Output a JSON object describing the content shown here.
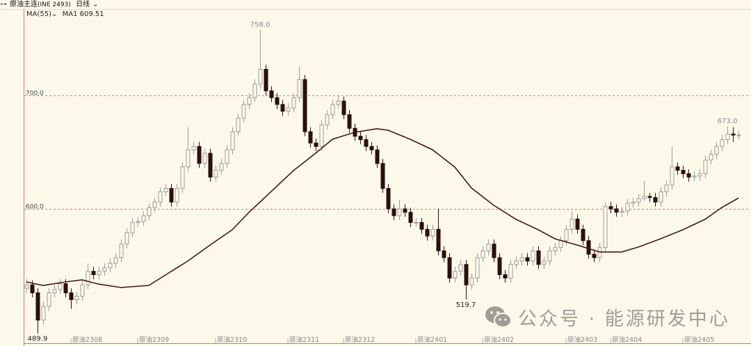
{
  "header": {
    "link_icon": "link-icon",
    "title": "原油主连",
    "code": "(INE 2493)",
    "period": "日线",
    "period_icon": "chevron-down-icon"
  },
  "indicator": {
    "name": "MA(55)",
    "dropdown_icon": "chevron-down-icon",
    "value_label": "MA1 609.51"
  },
  "watermark": {
    "icon": "wechat-icon",
    "text": "公众号 · 能源研发中心"
  },
  "colors": {
    "background": "#fdf9ea",
    "up_candle": "#9a9a9a",
    "down_candle": "#2b0f0f",
    "ma_line": "#4a1414",
    "grid": "#c0504d",
    "axis": "#c87c6c"
  },
  "chart_data": {
    "type": "candlestick",
    "y_ticks": [
      {
        "value": 700,
        "label": "700.0"
      },
      {
        "value": 600,
        "label": "600.0"
      }
    ],
    "grid": "dashed horizontal at tick levels",
    "x_labels": [
      {
        "index": 8,
        "label": "原油2308"
      },
      {
        "index": 20,
        "label": "原油2309"
      },
      {
        "index": 34,
        "label": "原油2310"
      },
      {
        "index": 47,
        "label": "原油2311"
      },
      {
        "index": 57,
        "label": "原油2312"
      },
      {
        "index": 70,
        "label": "原油2401"
      },
      {
        "index": 82,
        "label": "原油2402"
      },
      {
        "index": 97,
        "label": "原油2403"
      },
      {
        "index": 105,
        "label": "原油2404"
      },
      {
        "index": 118,
        "label": "原油2405"
      }
    ],
    "annotations": [
      {
        "index": 42,
        "value": 758.0,
        "label": "758.0",
        "position": "above"
      },
      {
        "index": 79,
        "value": 519.7,
        "label": "519.7",
        "position": "below"
      },
      {
        "index": 126,
        "value": 673.0,
        "label": "673.0",
        "position": "above"
      },
      {
        "index": 2,
        "value": 489.9,
        "label": "489.9",
        "position": "below"
      }
    ],
    "ohlc": [
      [
        530,
        538,
        526,
        533
      ],
      [
        533,
        537,
        522,
        526
      ],
      [
        526,
        530,
        490,
        502
      ],
      [
        502,
        518,
        498,
        514
      ],
      [
        514,
        530,
        510,
        526
      ],
      [
        526,
        533,
        522,
        529
      ],
      [
        529,
        538,
        525,
        534
      ],
      [
        534,
        538,
        522,
        526
      ],
      [
        526,
        530,
        512,
        520
      ],
      [
        520,
        527,
        516,
        523
      ],
      [
        523,
        537,
        519,
        533
      ],
      [
        533,
        552,
        529,
        545
      ],
      [
        545,
        549,
        538,
        542
      ],
      [
        542,
        549,
        538,
        545
      ],
      [
        545,
        552,
        541,
        548
      ],
      [
        548,
        556,
        544,
        552
      ],
      [
        552,
        561,
        548,
        557
      ],
      [
        557,
        573,
        553,
        569
      ],
      [
        569,
        583,
        565,
        579
      ],
      [
        579,
        592,
        575,
        588
      ],
      [
        588,
        593,
        584,
        589
      ],
      [
        589,
        598,
        585,
        594
      ],
      [
        594,
        605,
        590,
        601
      ],
      [
        601,
        610,
        597,
        606
      ],
      [
        606,
        619,
        602,
        615
      ],
      [
        615,
        622,
        611,
        618
      ],
      [
        618,
        622,
        602,
        606
      ],
      [
        606,
        622,
        602,
        618
      ],
      [
        618,
        641,
        614,
        637
      ],
      [
        637,
        672,
        633,
        652
      ],
      [
        652,
        659,
        648,
        655
      ],
      [
        655,
        659,
        636,
        640
      ],
      [
        640,
        653,
        636,
        649
      ],
      [
        649,
        653,
        624,
        628
      ],
      [
        628,
        638,
        624,
        634
      ],
      [
        634,
        644,
        630,
        640
      ],
      [
        640,
        656,
        636,
        652
      ],
      [
        652,
        672,
        648,
        668
      ],
      [
        668,
        684,
        664,
        680
      ],
      [
        680,
        696,
        676,
        692
      ],
      [
        692,
        702,
        688,
        698
      ],
      [
        698,
        714,
        694,
        710
      ],
      [
        710,
        758,
        706,
        723
      ],
      [
        723,
        727,
        700,
        704
      ],
      [
        704,
        708,
        694,
        698
      ],
      [
        698,
        702,
        688,
        692
      ],
      [
        692,
        696,
        682,
        686
      ],
      [
        686,
        693,
        682,
        689
      ],
      [
        689,
        702,
        685,
        698
      ],
      [
        698,
        725,
        694,
        714
      ],
      [
        714,
        718,
        664,
        668
      ],
      [
        668,
        672,
        654,
        658
      ],
      [
        658,
        662,
        651,
        655
      ],
      [
        655,
        678,
        651,
        674
      ],
      [
        674,
        687,
        670,
        683
      ],
      [
        683,
        696,
        679,
        692
      ],
      [
        692,
        700,
        688,
        695
      ],
      [
        695,
        699,
        679,
        683
      ],
      [
        683,
        687,
        667,
        671
      ],
      [
        671,
        675,
        660,
        664
      ],
      [
        664,
        668,
        657,
        661
      ],
      [
        661,
        665,
        651,
        655
      ],
      [
        655,
        659,
        648,
        652
      ],
      [
        652,
        656,
        636,
        640
      ],
      [
        640,
        644,
        614,
        618
      ],
      [
        618,
        622,
        596,
        600
      ],
      [
        600,
        604,
        590,
        594
      ],
      [
        594,
        608,
        590,
        600
      ],
      [
        600,
        604,
        593,
        597
      ],
      [
        597,
        601,
        584,
        588
      ],
      [
        588,
        592,
        584,
        588
      ],
      [
        588,
        592,
        578,
        582
      ],
      [
        582,
        586,
        572,
        576
      ],
      [
        576,
        586,
        572,
        582
      ],
      [
        582,
        600,
        559,
        563
      ],
      [
        563,
        567,
        553,
        557
      ],
      [
        557,
        561,
        535,
        539
      ],
      [
        539,
        549,
        535,
        545
      ],
      [
        545,
        555,
        541,
        551
      ],
      [
        551,
        555,
        520,
        533
      ],
      [
        533,
        543,
        529,
        539
      ],
      [
        539,
        561,
        535,
        557
      ],
      [
        557,
        567,
        553,
        563
      ],
      [
        563,
        573,
        559,
        569
      ],
      [
        569,
        573,
        553,
        557
      ],
      [
        557,
        561,
        538,
        542
      ],
      [
        542,
        546,
        535,
        539
      ],
      [
        539,
        555,
        535,
        551
      ],
      [
        551,
        558,
        547,
        554
      ],
      [
        554,
        561,
        550,
        557
      ],
      [
        557,
        561,
        550,
        554
      ],
      [
        554,
        567,
        550,
        563
      ],
      [
        563,
        567,
        547,
        551
      ],
      [
        551,
        558,
        547,
        554
      ],
      [
        554,
        567,
        550,
        563
      ],
      [
        563,
        570,
        559,
        566
      ],
      [
        566,
        576,
        562,
        572
      ],
      [
        572,
        586,
        568,
        582
      ],
      [
        582,
        598,
        578,
        591
      ],
      [
        591,
        595,
        578,
        582
      ],
      [
        582,
        586,
        568,
        572
      ],
      [
        572,
        576,
        556,
        560
      ],
      [
        560,
        564,
        553,
        557
      ],
      [
        557,
        570,
        553,
        566
      ],
      [
        566,
        606,
        562,
        602
      ],
      [
        602,
        606,
        596,
        600
      ],
      [
        600,
        604,
        593,
        597
      ],
      [
        597,
        602,
        593,
        598
      ],
      [
        598,
        609,
        594,
        605
      ],
      [
        605,
        610,
        601,
        606
      ],
      [
        606,
        613,
        602,
        609
      ],
      [
        609,
        625,
        607,
        611
      ],
      [
        611,
        614,
        606,
        610
      ],
      [
        610,
        614,
        602,
        606
      ],
      [
        606,
        619,
        602,
        615
      ],
      [
        615,
        625,
        611,
        621
      ],
      [
        621,
        655,
        617,
        637
      ],
      [
        637,
        641,
        630,
        634
      ],
      [
        634,
        638,
        627,
        631
      ],
      [
        631,
        635,
        624,
        628
      ],
      [
        628,
        633,
        624,
        629
      ],
      [
        629,
        635,
        625,
        631
      ],
      [
        631,
        647,
        627,
        643
      ],
      [
        643,
        652,
        639,
        648
      ],
      [
        648,
        659,
        644,
        655
      ],
      [
        655,
        665,
        651,
        661
      ],
      [
        661,
        673,
        657,
        666
      ],
      [
        666,
        672,
        659,
        665
      ],
      [
        665,
        669,
        661,
        665
      ]
    ],
    "ma55": [
      [
        0,
        535.6
      ],
      [
        3,
        532.5
      ],
      [
        7,
        535.6
      ],
      [
        10,
        537.4
      ],
      [
        13,
        533.7
      ],
      [
        17,
        530.7
      ],
      [
        22,
        532.5
      ],
      [
        25,
        541.7
      ],
      [
        29,
        554.0
      ],
      [
        33,
        568.1
      ],
      [
        37,
        581.6
      ],
      [
        40,
        596.9
      ],
      [
        44,
        615.3
      ],
      [
        48,
        633.7
      ],
      [
        52,
        649.1
      ],
      [
        55,
        661.3
      ],
      [
        59,
        667.5
      ],
      [
        63,
        670.6
      ],
      [
        65,
        669.3
      ],
      [
        69,
        661.3
      ],
      [
        73,
        652.1
      ],
      [
        77,
        636.8
      ],
      [
        80,
        618.4
      ],
      [
        84,
        603.1
      ],
      [
        88,
        590.8
      ],
      [
        92,
        581.6
      ],
      [
        95,
        573.6
      ],
      [
        99,
        568.1
      ],
      [
        103,
        562.0
      ],
      [
        107,
        562.0
      ],
      [
        110,
        566.3
      ],
      [
        114,
        573.6
      ],
      [
        118,
        581.6
      ],
      [
        122,
        590.8
      ],
      [
        125,
        601.2
      ],
      [
        128,
        609.51
      ]
    ]
  }
}
